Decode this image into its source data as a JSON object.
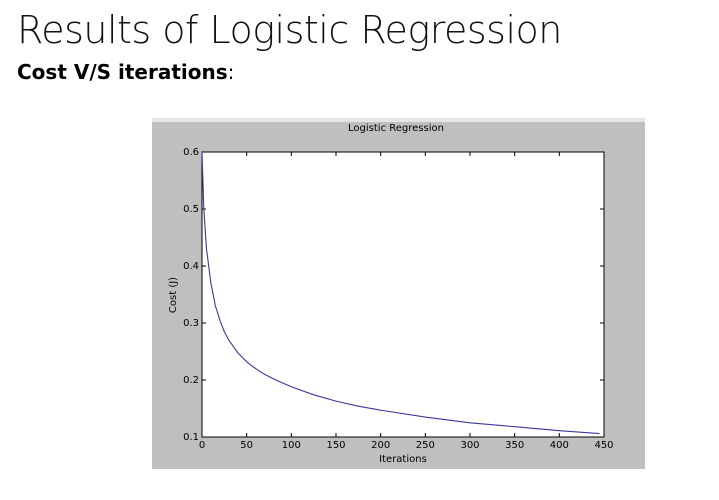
{
  "slide": {
    "title": "Results of Logistic Regression",
    "subtitle_bold": "Cost V/S iterations",
    "subtitle_suffix": ":"
  },
  "chart_data": {
    "type": "line",
    "title": "Logistic Regression",
    "xlabel": "Iterations",
    "ylabel": "Cost (J)",
    "xlim": [
      0,
      450
    ],
    "ylim": [
      0.1,
      0.6
    ],
    "xticks": [
      0,
      50,
      100,
      150,
      200,
      250,
      300,
      350,
      400,
      450
    ],
    "yticks": [
      0.1,
      0.2,
      0.3,
      0.4,
      0.5,
      0.6
    ],
    "grid": false,
    "colors": {
      "line": "#3a3a9a",
      "background": "#bfbfbf",
      "plot": "#ffffff"
    },
    "series": [
      {
        "x": [
          0,
          2,
          5,
          10,
          15,
          20,
          25,
          30,
          40,
          50,
          60,
          70,
          80,
          100,
          125,
          150,
          175,
          200,
          250,
          300,
          350,
          400,
          445
        ],
        "y": [
          0.6,
          0.5,
          0.43,
          0.37,
          0.33,
          0.305,
          0.285,
          0.27,
          0.248,
          0.232,
          0.22,
          0.21,
          0.202,
          0.188,
          0.174,
          0.163,
          0.154,
          0.147,
          0.135,
          0.125,
          0.118,
          0.111,
          0.106
        ]
      }
    ]
  }
}
